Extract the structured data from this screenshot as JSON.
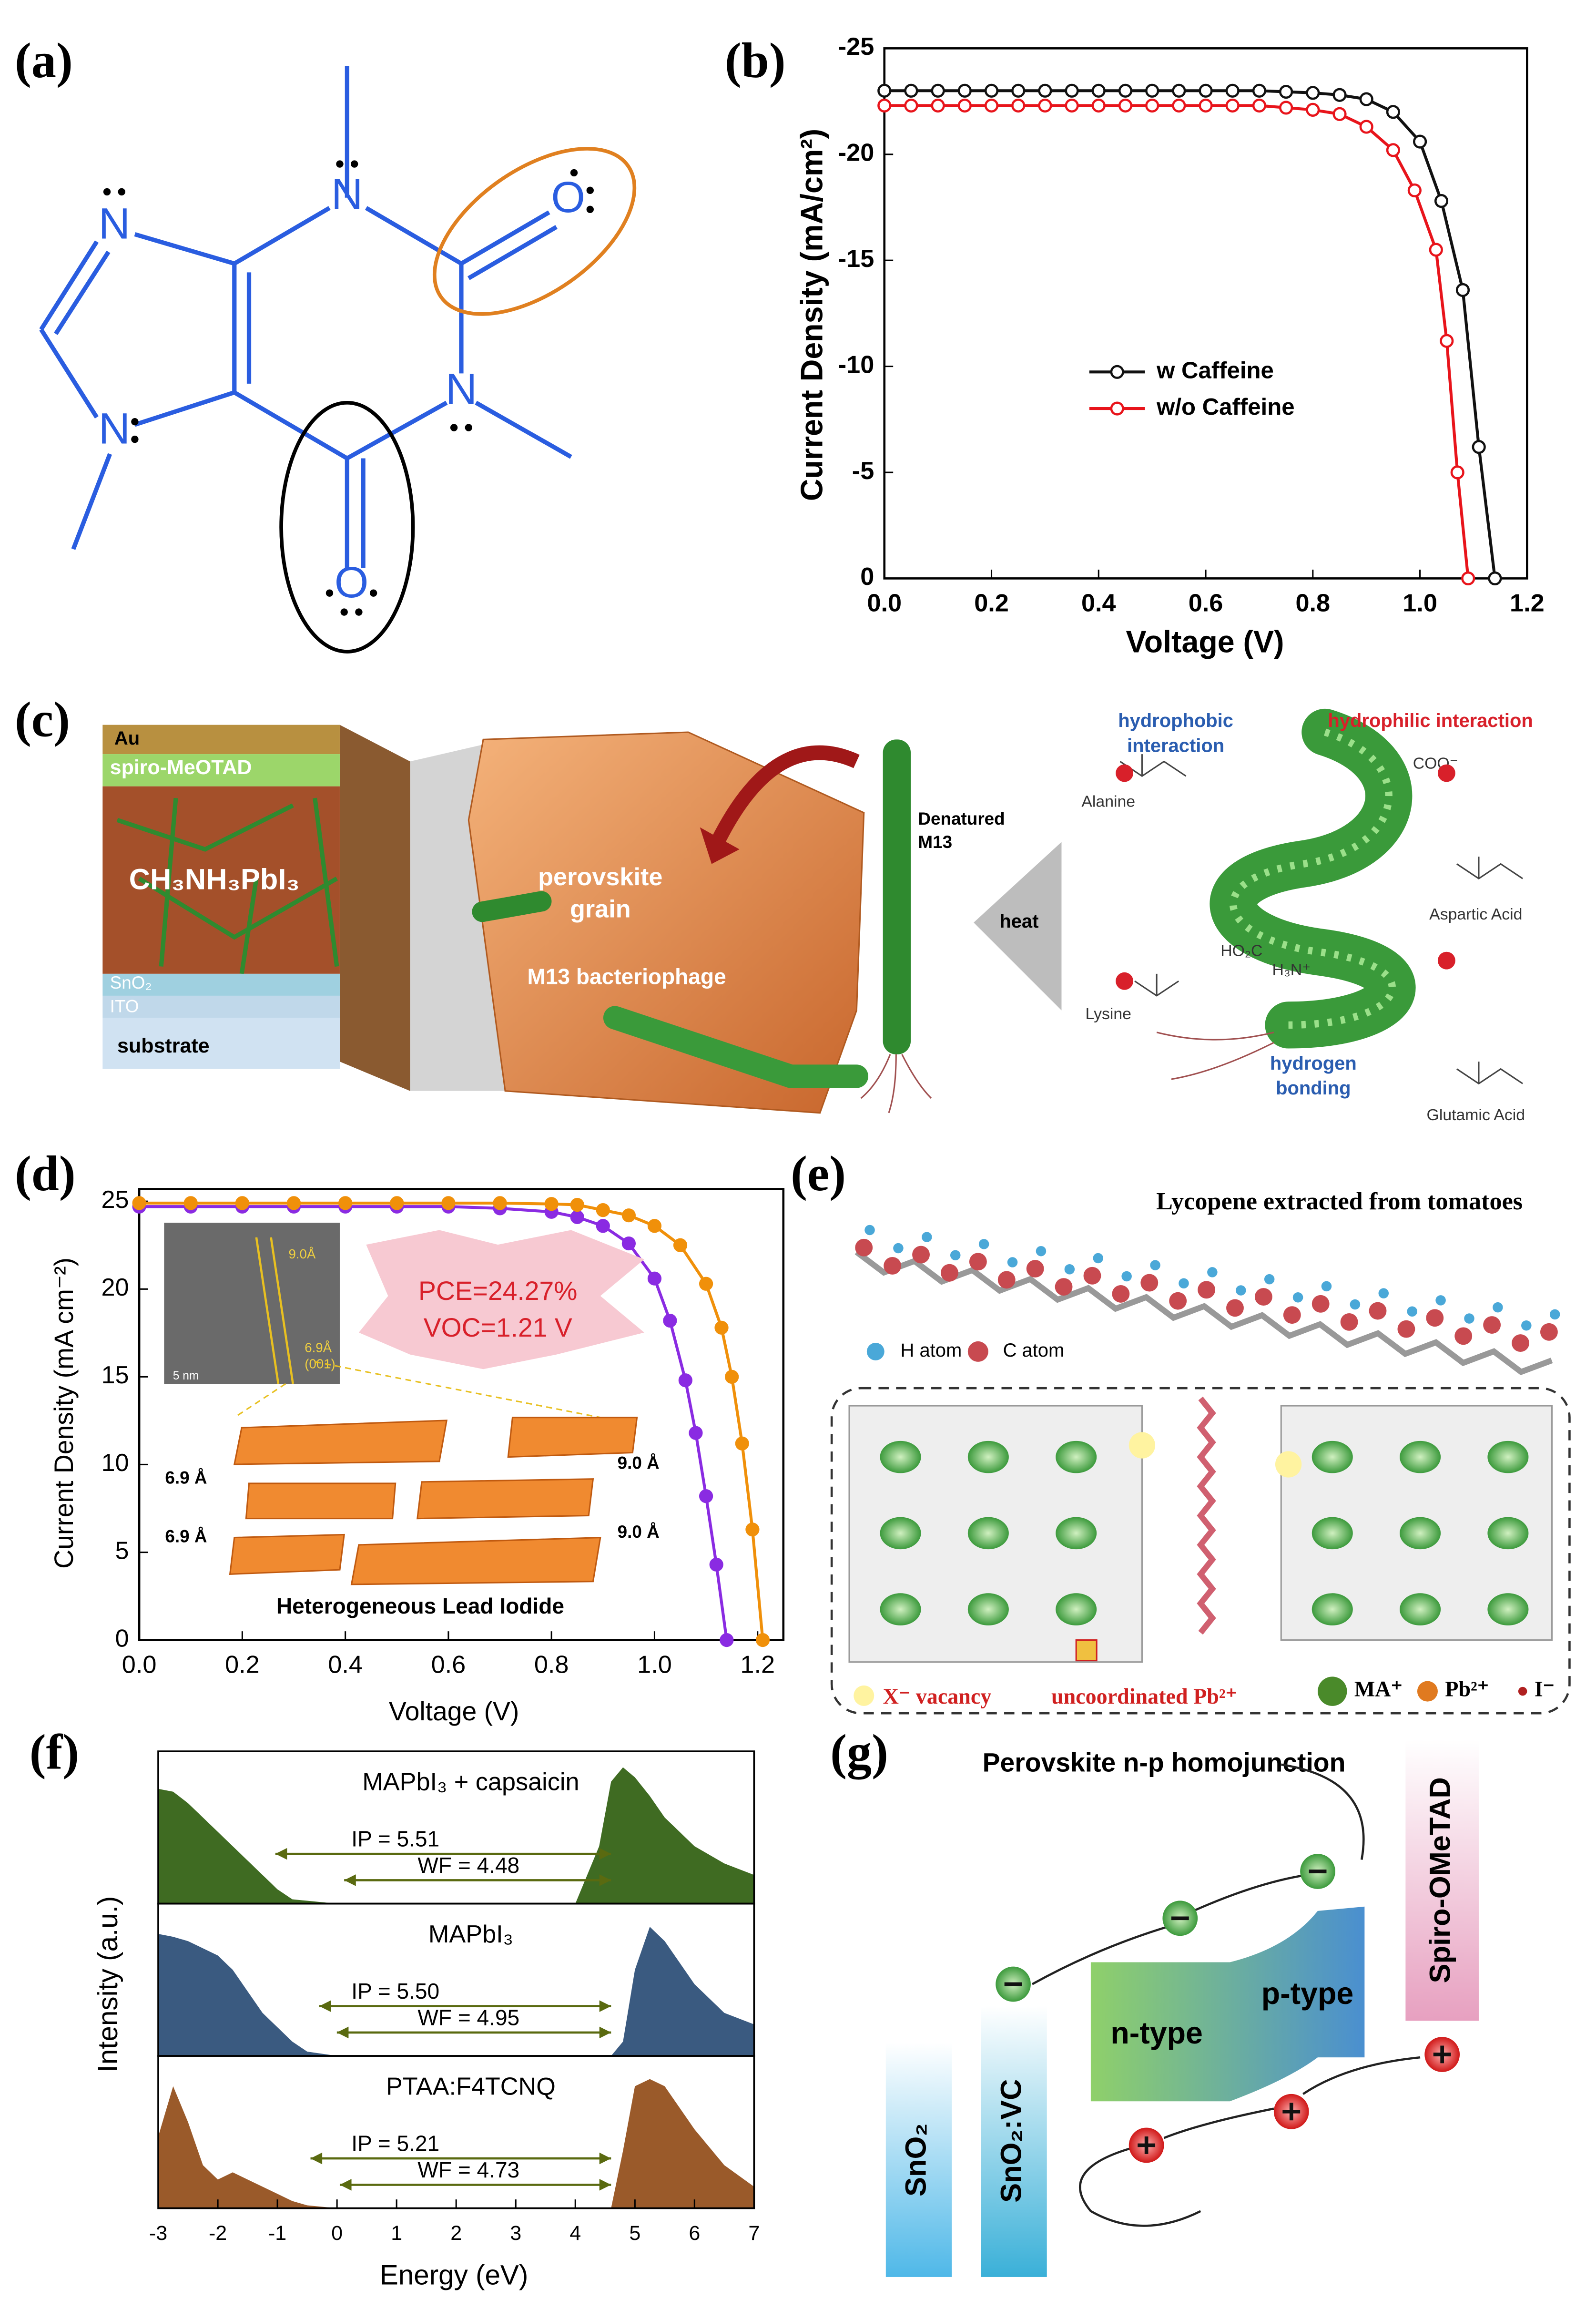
{
  "panel_labels": [
    "(a)",
    "(b)",
    "(c)",
    "(d)",
    "(e)",
    "(f)",
    "(g)"
  ],
  "chart_data": [
    {
      "type": "line",
      "xlabel": "Voltage (V)",
      "ylabel": "Current Density (mA/cm²)",
      "xlim": [
        0,
        1.2
      ],
      "ylim": [
        0,
        -25
      ],
      "xticks": [
        {
          "value": 0,
          "label": "0.0"
        },
        0.2,
        0.4,
        0.6,
        0.8,
        {
          "value": 1,
          "label": "1.0"
        },
        1.2
      ],
      "yticks": [
        -25,
        -20,
        -15,
        -10,
        -5,
        0
      ],
      "legend": "center",
      "marker": "open",
      "series": [
        {
          "name": "w Caffeine",
          "color": "#111111",
          "x": [
            0,
            0.05,
            0.1,
            0.15,
            0.2,
            0.25,
            0.3,
            0.35,
            0.4,
            0.45,
            0.5,
            0.55,
            0.6,
            0.65,
            0.7,
            0.75,
            0.8,
            0.85,
            0.9,
            0.95,
            1.0,
            1.04,
            1.08,
            1.11,
            1.14
          ],
          "values": [
            -23,
            -23,
            -23,
            -23,
            -23,
            -23,
            -23,
            -23,
            -23,
            -23,
            -23,
            -23,
            -23,
            -23,
            -23,
            -22.95,
            -22.9,
            -22.8,
            -22.6,
            -22.0,
            -20.6,
            -17.8,
            -13.6,
            -6.2,
            0
          ]
        },
        {
          "name": "w/o Caffeine",
          "color": "#e8141b",
          "x": [
            0,
            0.05,
            0.1,
            0.15,
            0.2,
            0.25,
            0.3,
            0.35,
            0.4,
            0.45,
            0.5,
            0.55,
            0.6,
            0.65,
            0.7,
            0.75,
            0.8,
            0.85,
            0.9,
            0.95,
            0.99,
            1.03,
            1.05,
            1.07,
            1.09
          ],
          "values": [
            -22.3,
            -22.3,
            -22.3,
            -22.3,
            -22.3,
            -22.3,
            -22.3,
            -22.3,
            -22.3,
            -22.3,
            -22.3,
            -22.3,
            -22.3,
            -22.3,
            -22.3,
            -22.2,
            -22.1,
            -21.9,
            -21.3,
            -20.2,
            -18.3,
            -15.5,
            -11.2,
            -5.0,
            0
          ]
        }
      ]
    },
    {
      "type": "line",
      "xlabel": "Voltage (V)",
      "ylabel": "Current Density (mA cm⁻²)",
      "xlim": [
        0,
        1.25
      ],
      "ylim": [
        0,
        25.7
      ],
      "xticks": [
        {
          "value": 0,
          "label": "0.0"
        },
        0.2,
        0.4,
        0.6,
        0.8,
        {
          "value": 1,
          "label": "1.0"
        },
        1.2
      ],
      "yticks": [
        0,
        5,
        10,
        15,
        20,
        25
      ],
      "marker": "filled",
      "annotations": [
        "PCE=24.27%",
        "VOC=1.21 V",
        "9.0Å",
        "6.9Å",
        "(001)",
        "5 nm",
        "6.9 Å",
        "6.9 Å",
        "9.0 Å",
        "9.0 Å",
        "Heterogeneous Lead Iodide"
      ],
      "series": [
        {
          "color": "#8a2be2",
          "x": [
            0,
            0.1,
            0.2,
            0.3,
            0.4,
            0.5,
            0.6,
            0.7,
            0.8,
            0.85,
            0.9,
            0.95,
            1.0,
            1.03,
            1.06,
            1.08,
            1.1,
            1.12,
            1.14
          ],
          "values": [
            24.7,
            24.7,
            24.7,
            24.7,
            24.7,
            24.7,
            24.7,
            24.6,
            24.4,
            24.1,
            23.6,
            22.6,
            20.6,
            18.2,
            14.8,
            11.8,
            8.2,
            4.3,
            0
          ]
        },
        {
          "color": "#f0900a",
          "x": [
            0,
            0.1,
            0.2,
            0.3,
            0.4,
            0.5,
            0.6,
            0.7,
            0.8,
            0.85,
            0.9,
            0.95,
            1.0,
            1.05,
            1.1,
            1.13,
            1.15,
            1.17,
            1.19,
            1.21
          ],
          "values": [
            24.9,
            24.9,
            24.9,
            24.9,
            24.9,
            24.9,
            24.9,
            24.9,
            24.85,
            24.8,
            24.5,
            24.2,
            23.6,
            22.5,
            20.3,
            17.8,
            15.0,
            11.2,
            6.3,
            0
          ]
        }
      ]
    },
    {
      "type": "area",
      "xlabel": "Energy (eV)",
      "ylabel": "Intensity (a.u.)",
      "xlim": [
        -3,
        7
      ],
      "ylim": [
        0,
        1
      ],
      "xticks": [
        -3,
        -2,
        -1,
        0,
        1,
        2,
        3,
        4,
        5,
        6,
        7
      ],
      "x": [
        -3,
        -2.75,
        -2.5,
        -2.25,
        -2,
        -1.75,
        -1.5,
        -1.25,
        -1,
        -0.75,
        -0.5,
        0,
        1,
        2,
        3,
        4,
        4.4,
        4.6,
        4.8,
        5,
        5.25,
        5.5,
        6,
        6.5,
        7
      ],
      "panels": [
        {
          "name": "MAPbI₃ + capsaicin",
          "color": "#3f6b22",
          "annotations": [
            "IP = 5.51",
            "WF = 4.48"
          ],
          "values": [
            0.8,
            0.78,
            0.7,
            0.6,
            0.5,
            0.4,
            0.3,
            0.2,
            0.1,
            0.03,
            0.02,
            0,
            0,
            0,
            0,
            0,
            0.4,
            0.85,
            0.95,
            0.88,
            0.75,
            0.6,
            0.4,
            0.28,
            0.2
          ]
        },
        {
          "name": "MAPbI₃",
          "color": "#3a5a80",
          "annotations": [
            "IP = 5.50",
            "WF = 4.95"
          ],
          "values": [
            0.85,
            0.83,
            0.8,
            0.75,
            0.7,
            0.6,
            0.45,
            0.3,
            0.2,
            0.1,
            0.03,
            0,
            0,
            0,
            0,
            0,
            0,
            0,
            0.1,
            0.6,
            0.9,
            0.8,
            0.5,
            0.3,
            0.22
          ]
        },
        {
          "name": "PTAA:F4TCNQ",
          "color": "#9a5a2a",
          "annotations": [
            "IP = 5.21",
            "WF = 4.73"
          ],
          "values": [
            0.5,
            0.85,
            0.6,
            0.3,
            0.2,
            0.25,
            0.2,
            0.15,
            0.1,
            0.05,
            0.02,
            0,
            0,
            0,
            0,
            0,
            0,
            0,
            0.4,
            0.85,
            0.9,
            0.85,
            0.55,
            0.3,
            0.15
          ]
        }
      ]
    }
  ],
  "diagram_a": {
    "atoms": [
      "N",
      "N",
      "N",
      "N",
      "O",
      "O"
    ]
  },
  "diagram_c": {
    "labels": [
      "Au",
      "spiro-MeOTAD",
      "CH₃NH₃PbI₃",
      "SnO₂",
      "ITO",
      "substrate",
      "perovskite",
      "grain",
      "M13 bacteriophage",
      "Denatured",
      "M13",
      "heat",
      "hydrophobic",
      "interaction",
      "hydrophilic interaction",
      "Alanine",
      "Lysine",
      "Aspartic Acid",
      "Glutamic Acid",
      "hydrogen",
      "bonding",
      "HO₂C",
      "H₃N⁺",
      "COO⁻"
    ]
  },
  "diagram_e": {
    "labels": [
      "Lycopene extracted from tomatoes",
      "H atom",
      "C atom",
      "X⁻ vacancy",
      "uncoordinated Pb²⁺",
      "MA⁺",
      "Pb²⁺",
      "I⁻"
    ]
  },
  "diagram_g": {
    "labels": [
      "Perovskite n-p homojunction",
      "Spiro-OMeTAD",
      "SnO₂",
      "SnO₂:VC",
      "n-type",
      "p-type"
    ]
  }
}
